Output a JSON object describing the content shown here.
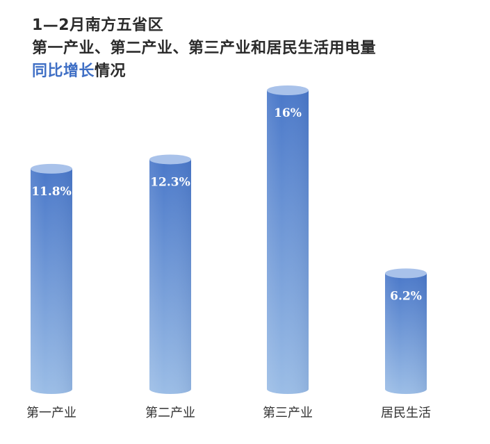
{
  "title": {
    "line1": "1—2月南方五省区",
    "line2": "第一产业、第二产业、第三产业和居民生活用电量",
    "line3_accent": "同比增长",
    "line3_rest": "情况"
  },
  "colors": {
    "bar_top": "#4a78c9",
    "bar_bottom": "#9bbde6",
    "bar_cap": "#a9c2ea",
    "accent_text": "#3f6fc5"
  },
  "chart_data": {
    "type": "bar",
    "categories": [
      "第一产业",
      "第二产业",
      "第三产业",
      "居民生活"
    ],
    "values": [
      11.8,
      12.3,
      16,
      6.2
    ],
    "value_labels": [
      "11.8%",
      "12.3%",
      "16%",
      "6.2%"
    ],
    "unit": "%",
    "xlabel": "",
    "ylabel": "",
    "grid": false,
    "bar_style": "cylinder"
  }
}
